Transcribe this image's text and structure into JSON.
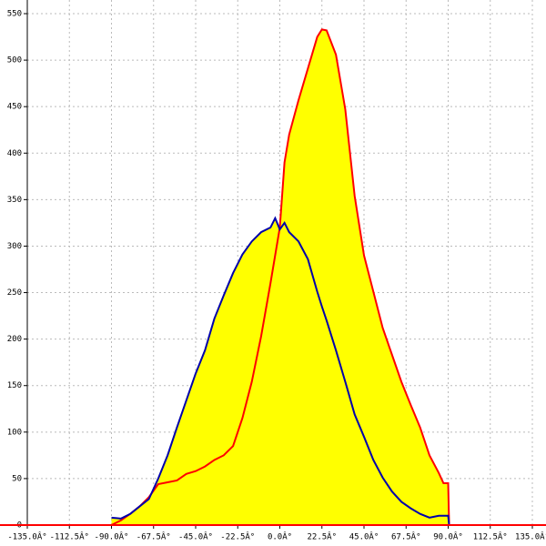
{
  "chart_data": {
    "type": "area",
    "x": [
      -90,
      -85,
      -80,
      -75,
      -70,
      -65,
      -60,
      -55,
      -50,
      -45,
      -40,
      -35,
      -30,
      -25,
      -20,
      -15,
      -10,
      -5,
      -2.5,
      0,
      2.5,
      5,
      10,
      15,
      20,
      22.5,
      25,
      30,
      35,
      40,
      45,
      50,
      55,
      60,
      65,
      70,
      75,
      80,
      85,
      87.5,
      90,
      90.5
    ],
    "series": [
      {
        "color": "#ff0000",
        "fill": "#ffff00",
        "values": [
          0,
          5,
          12,
          20,
          30,
          44,
          46,
          48,
          55,
          58,
          63,
          70,
          75,
          85,
          115,
          154,
          203,
          260,
          290,
          320,
          390,
          420,
          457,
          491,
          525,
          533,
          532,
          506,
          447,
          354,
          290,
          251,
          212,
          183,
          154,
          129,
          105,
          75,
          56,
          45,
          45,
          0
        ]
      },
      {
        "color": "#0000aa",
        "fill": "#ffff00",
        "values": [
          8,
          7,
          12,
          20,
          28,
          50,
          75,
          105,
          134,
          163,
          188,
          222,
          247,
          271,
          291,
          305,
          315,
          320,
          330,
          318,
          325,
          315,
          305,
          286,
          251,
          235,
          220,
          188,
          154,
          119,
          95,
          70,
          51,
          36,
          25,
          18,
          12,
          8,
          10,
          10,
          10,
          0
        ]
      }
    ],
    "xlim": [
      -135,
      135
    ],
    "ylim": [
      0,
      550
    ],
    "xticks": [
      {
        "value": -135,
        "label": "-135.0Â°"
      },
      {
        "value": -112.5,
        "label": "-112.5Â°"
      },
      {
        "value": -90,
        "label": "-90.0Â°"
      },
      {
        "value": -67.5,
        "label": "-67.5Â°"
      },
      {
        "value": -45,
        "label": "-45.0Â°"
      },
      {
        "value": -22.5,
        "label": "-22.5Â°"
      },
      {
        "value": 0,
        "label": "0.0Â°"
      },
      {
        "value": 22.5,
        "label": "22.5Â°"
      },
      {
        "value": 45,
        "label": "45.0Â°"
      },
      {
        "value": 67.5,
        "label": "67.5Â°"
      },
      {
        "value": 90,
        "label": "90.0Â°"
      },
      {
        "value": 112.5,
        "label": "112.5Â°"
      },
      {
        "value": 135,
        "label": "135.0Â°"
      }
    ],
    "yticks": [
      0,
      50,
      100,
      150,
      200,
      250,
      300,
      350,
      400,
      450,
      500,
      550
    ],
    "grid": true
  }
}
